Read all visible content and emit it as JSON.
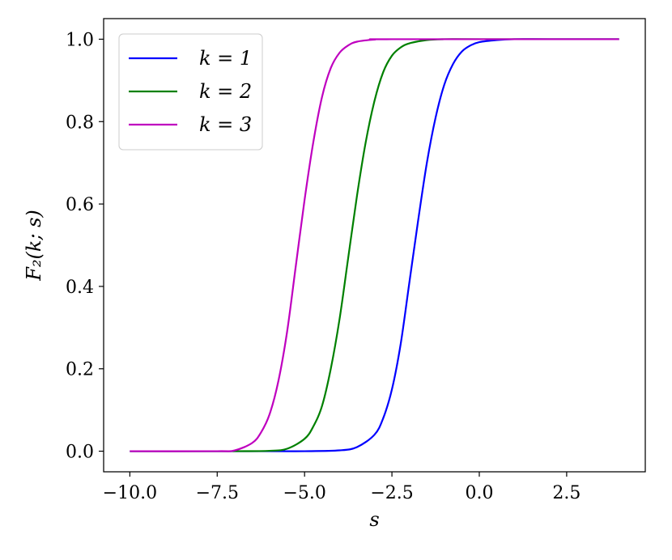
{
  "chart_data": {
    "type": "line",
    "xlabel": "s",
    "ylabel": "F₂(k; s)",
    "xlim": [
      -10.75,
      4.75
    ],
    "ylim": [
      -0.05,
      1.05
    ],
    "xticks": [
      -10.0,
      -7.5,
      -5.0,
      -2.5,
      0.0,
      2.5
    ],
    "xtick_labels": [
      "−10.0",
      "−7.5",
      "−5.0",
      "−2.5",
      "0.0",
      "2.5"
    ],
    "yticks": [
      0.0,
      0.2,
      0.4,
      0.6,
      0.8,
      1.0
    ],
    "ytick_labels": [
      "0.0",
      "0.2",
      "0.4",
      "0.6",
      "0.8",
      "1.0"
    ],
    "grid": false,
    "legend_position": "top-left",
    "series": [
      {
        "name": "k = 1",
        "color": "#0000ff",
        "x": [
          -10,
          -6,
          -5,
          -4,
          -3.5,
          -3,
          -2.75,
          -2.5,
          -2.25,
          -2,
          -1.75,
          -1.5,
          -1.25,
          -1,
          -0.75,
          -0.5,
          -0.25,
          0,
          0.5,
          1,
          2,
          4
        ],
        "y": [
          0,
          0,
          0,
          0.002,
          0.01,
          0.04,
          0.08,
          0.15,
          0.26,
          0.41,
          0.56,
          0.7,
          0.81,
          0.89,
          0.94,
          0.97,
          0.985,
          0.993,
          0.998,
          1.0,
          1.0,
          1.0
        ]
      },
      {
        "name": "k = 2",
        "color": "#008000",
        "x": [
          -10,
          -7,
          -6,
          -5.5,
          -5,
          -4.75,
          -4.5,
          -4.25,
          -4,
          -3.75,
          -3.5,
          -3.25,
          -3,
          -2.75,
          -2.5,
          -2.25,
          -2,
          -1.5,
          -1,
          0,
          4
        ],
        "y": [
          0,
          0,
          0.001,
          0.006,
          0.03,
          0.06,
          0.11,
          0.2,
          0.32,
          0.47,
          0.62,
          0.75,
          0.85,
          0.92,
          0.96,
          0.98,
          0.99,
          0.998,
          1.0,
          1.0,
          1.0
        ]
      },
      {
        "name": "k = 3",
        "color": "#bf00bf",
        "x": [
          -10,
          -7.5,
          -7,
          -6.5,
          -6.25,
          -6,
          -5.75,
          -5.5,
          -5.25,
          -5,
          -4.75,
          -4.5,
          -4.25,
          -4,
          -3.75,
          -3.5,
          -3,
          -2.5,
          4
        ],
        "y": [
          0,
          0,
          0.002,
          0.02,
          0.045,
          0.09,
          0.17,
          0.29,
          0.45,
          0.61,
          0.75,
          0.86,
          0.93,
          0.967,
          0.985,
          0.994,
          0.999,
          1.0,
          1.0
        ]
      }
    ]
  }
}
